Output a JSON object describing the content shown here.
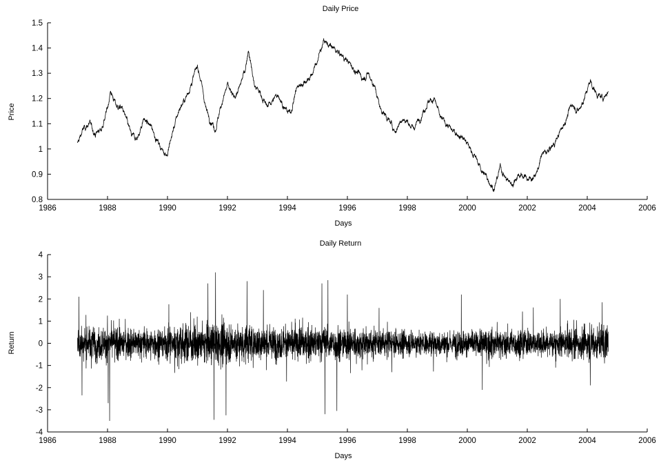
{
  "chart_data": [
    {
      "type": "line",
      "title": "Daily Price",
      "xlabel": "Days",
      "ylabel": "Price",
      "xlim": [
        1986,
        2006
      ],
      "ylim": [
        0.8,
        1.5
      ],
      "xticks": [
        "1986",
        "1988",
        "1990",
        "1992",
        "1994",
        "1996",
        "1998",
        "2000",
        "2002",
        "2004",
        "2006"
      ],
      "yticks": [
        "0.8",
        "0.9",
        "1",
        "1.1",
        "1.2",
        "1.3",
        "1.4",
        "1.5"
      ],
      "grid": false,
      "series_color": "#000000",
      "series": [
        {
          "x": [
            1987.0,
            1987.2,
            1987.4,
            1987.6,
            1987.8,
            1988.0,
            1988.1,
            1988.3,
            1988.5,
            1988.8,
            1989.0,
            1989.2,
            1989.5,
            1989.6,
            1989.8,
            1990.0,
            1990.2,
            1990.4,
            1990.6,
            1990.8,
            1991.0,
            1991.1,
            1991.3,
            1991.6,
            1991.8,
            1992.0,
            1992.2,
            1992.4,
            1992.6,
            1992.7,
            1992.9,
            1993.1,
            1993.3,
            1993.5,
            1993.7,
            1993.9,
            1994.1,
            1994.3,
            1994.5,
            1994.8,
            1995.0,
            1995.2,
            1995.4,
            1995.6,
            1995.8,
            1996.0,
            1996.2,
            1996.5,
            1996.7,
            1996.9,
            1997.1,
            1997.3,
            1997.6,
            1997.8,
            1998.0,
            1998.2,
            1998.4,
            1998.7,
            1998.9,
            1999.1,
            1999.3,
            1999.5,
            1999.7,
            1999.9,
            2000.1,
            2000.3,
            2000.5,
            2000.7,
            2000.9,
            2001.1,
            2001.3,
            2001.5,
            2001.7,
            2001.9,
            2002.1,
            2002.3,
            2002.5,
            2002.7,
            2002.9,
            2003.1,
            2003.3,
            2003.5,
            2003.7,
            2003.9,
            2004.1,
            2004.3,
            2004.5,
            2004.7
          ],
          "values": [
            1.02,
            1.08,
            1.1,
            1.06,
            1.08,
            1.16,
            1.23,
            1.17,
            1.16,
            1.05,
            1.04,
            1.12,
            1.08,
            1.05,
            1.0,
            0.98,
            1.08,
            1.16,
            1.2,
            1.26,
            1.33,
            1.28,
            1.15,
            1.08,
            1.18,
            1.25,
            1.2,
            1.24,
            1.32,
            1.4,
            1.25,
            1.22,
            1.17,
            1.19,
            1.22,
            1.16,
            1.14,
            1.24,
            1.26,
            1.29,
            1.35,
            1.43,
            1.41,
            1.39,
            1.37,
            1.35,
            1.32,
            1.28,
            1.3,
            1.25,
            1.16,
            1.13,
            1.07,
            1.12,
            1.11,
            1.08,
            1.12,
            1.19,
            1.2,
            1.12,
            1.1,
            1.07,
            1.06,
            1.04,
            1.0,
            0.96,
            0.91,
            0.88,
            0.84,
            0.93,
            0.88,
            0.86,
            0.9,
            0.89,
            0.88,
            0.9,
            0.98,
            0.99,
            1.02,
            1.07,
            1.12,
            1.18,
            1.15,
            1.2,
            1.27,
            1.22,
            1.2,
            1.23
          ]
        }
      ]
    },
    {
      "type": "line",
      "title": "Daily Return",
      "xlabel": "Days",
      "ylabel": "Return",
      "xlim": [
        1986,
        2006
      ],
      "ylim": [
        -4,
        4
      ],
      "xticks": [
        "1986",
        "1988",
        "1990",
        "1992",
        "1994",
        "1996",
        "1998",
        "2000",
        "2002",
        "2004",
        "2006"
      ],
      "yticks": [
        "-4",
        "-3",
        "-2",
        "-1",
        "0",
        "1",
        "2",
        "3",
        "4"
      ],
      "grid": false,
      "series_color": "#000000",
      "series": [
        {
          "x_range": [
            1987.0,
            2004.7
          ],
          "envelope": {
            "x": [
              1987.0,
              1988.0,
              1989.0,
              1990.0,
              1991.0,
              1992.0,
              1993.0,
              1994.0,
              1995.0,
              1996.0,
              1997.0,
              1998.0,
              1999.0,
              2000.0,
              2001.0,
              2002.0,
              2003.0,
              2004.0,
              2004.7
            ],
            "typical_amplitude": [
              0.75,
              0.7,
              0.6,
              0.7,
              0.85,
              0.85,
              0.75,
              0.65,
              0.7,
              0.7,
              0.55,
              0.5,
              0.5,
              0.55,
              0.6,
              0.55,
              0.55,
              0.7,
              0.75
            ]
          },
          "spikes": [
            {
              "x": 1987.05,
              "value": 2.1
            },
            {
              "x": 1987.15,
              "value": -2.35
            },
            {
              "x": 1988.07,
              "value": -3.5
            },
            {
              "x": 1988.02,
              "value": -2.7
            },
            {
              "x": 1991.6,
              "value": 3.2
            },
            {
              "x": 1991.55,
              "value": -3.45
            },
            {
              "x": 1991.95,
              "value": -3.25
            },
            {
              "x": 1991.35,
              "value": 2.7
            },
            {
              "x": 1992.65,
              "value": 2.8
            },
            {
              "x": 1993.2,
              "value": 2.4
            },
            {
              "x": 1995.15,
              "value": 2.7
            },
            {
              "x": 1995.25,
              "value": -3.2
            },
            {
              "x": 1995.35,
              "value": 2.85
            },
            {
              "x": 1995.65,
              "value": -3.05
            },
            {
              "x": 1996.0,
              "value": 2.2
            },
            {
              "x": 1999.8,
              "value": 2.2
            },
            {
              "x": 2000.5,
              "value": -2.1
            },
            {
              "x": 2003.1,
              "value": 2.0
            },
            {
              "x": 2004.1,
              "value": -1.9
            },
            {
              "x": 2004.5,
              "value": 1.85
            }
          ]
        }
      ]
    }
  ]
}
